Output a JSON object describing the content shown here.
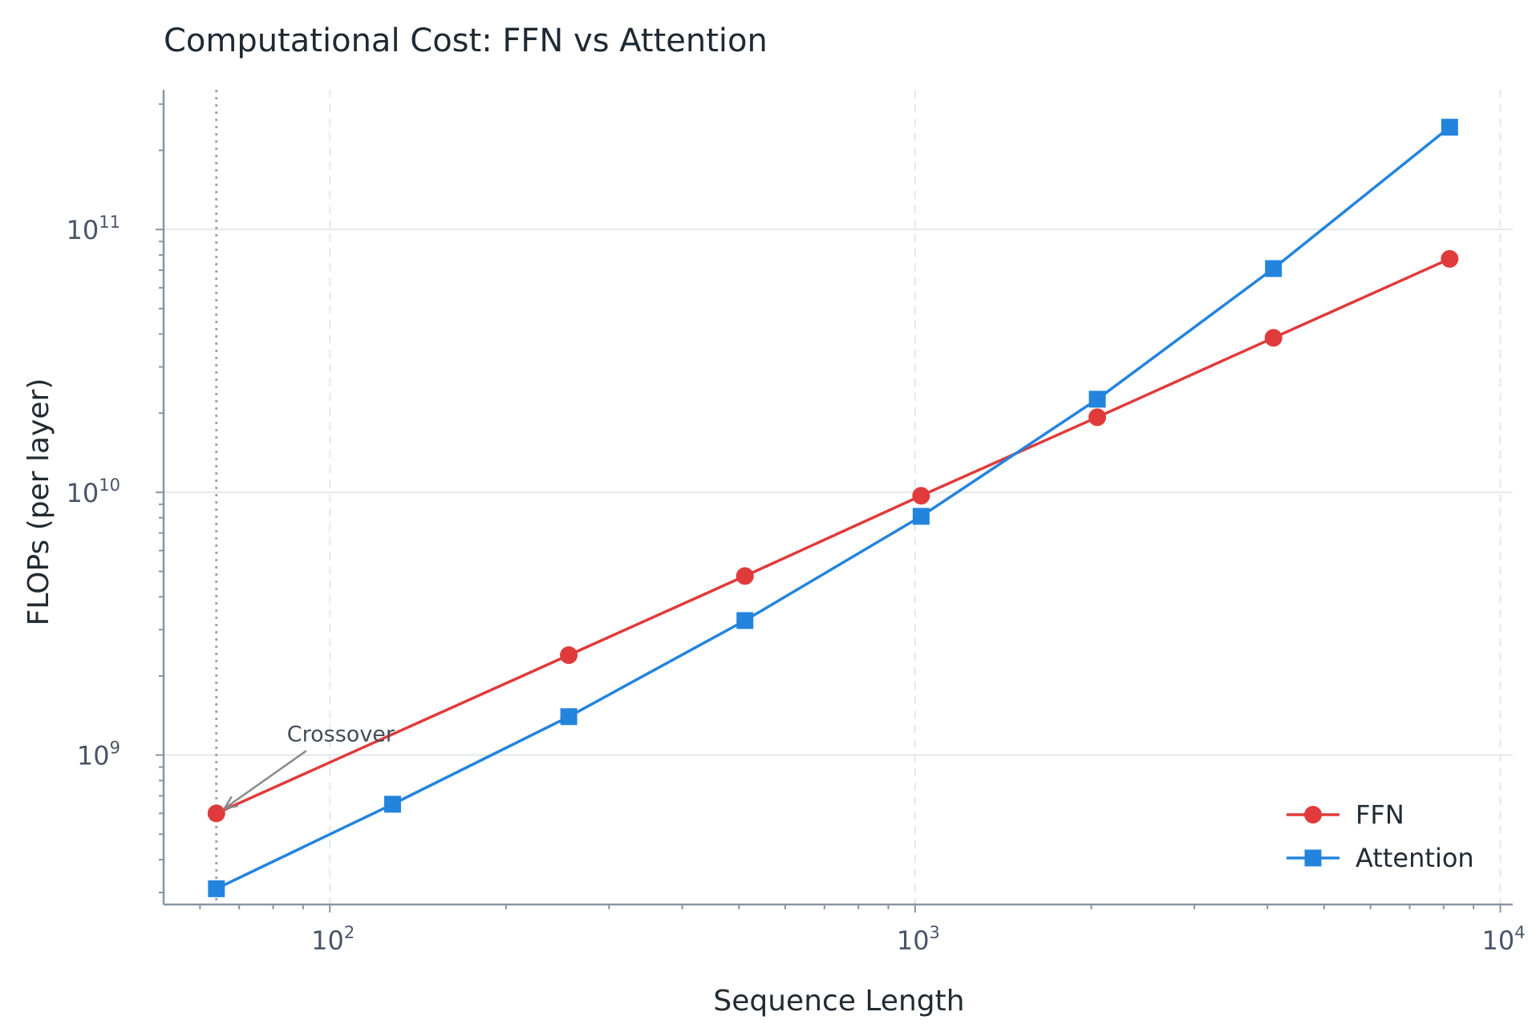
{
  "chart_data": {
    "type": "line",
    "title": "Computational Cost: FFN vs Attention",
    "xlabel": "Sequence Length",
    "ylabel": "FLOPs (per layer)",
    "xscale": "log",
    "yscale": "log",
    "xlim": [
      52,
      10500
    ],
    "ylim": [
      270000000,
      340000000000
    ],
    "grid": true,
    "legend": "lower-right",
    "x_ticks": [
      {
        "base": "10",
        "exp": "2",
        "value": 100
      },
      {
        "base": "10",
        "exp": "3",
        "value": 1000
      },
      {
        "base": "10",
        "exp": "4",
        "value": 10000
      }
    ],
    "y_ticks": [
      {
        "base": "10",
        "exp": "9",
        "value": 1000000000
      },
      {
        "base": "10",
        "exp": "10",
        "value": 10000000000
      },
      {
        "base": "10",
        "exp": "11",
        "value": 100000000000
      }
    ],
    "series": [
      {
        "name": "FFN",
        "color": "#e03a3a",
        "marker": "circle",
        "x": [
          64,
          256,
          512,
          1024,
          2048,
          4096,
          8192
        ],
        "y": [
          600000000,
          2400000000,
          4800000000,
          9700000000,
          19300000000,
          38700000000,
          77300000000
        ]
      },
      {
        "name": "Attention",
        "color": "#2384dd",
        "marker": "square",
        "x": [
          64,
          128,
          256,
          512,
          1024,
          2048,
          4096,
          8192
        ],
        "y": [
          310000000,
          650000000,
          1400000000,
          3250000000,
          8100000000,
          22600000000,
          71000000000,
          245000000000
        ]
      }
    ],
    "annotation": {
      "text": "Crossover",
      "x": 64,
      "y": 600000000
    },
    "vline_x": 64
  }
}
